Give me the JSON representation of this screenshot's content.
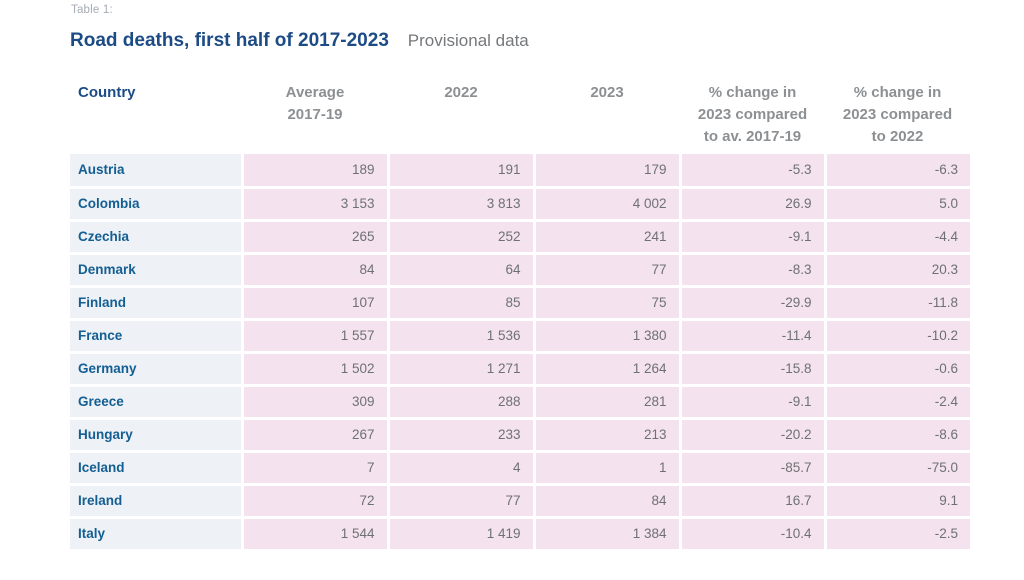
{
  "header": {
    "table_label": "Table 1:",
    "title": "Road deaths, first half of 2017-2023",
    "subtitle": "Provisional data"
  },
  "table": {
    "column_keys": [
      "country",
      "avg-2017-19",
      "2022",
      "2023",
      "pct-change-vs-avg-2017-19",
      "pct-change-vs-2022"
    ],
    "column_labels": [
      "Country",
      "Average\n2017-19",
      "2022",
      "2023",
      "% change in\n2023 compared\nto av. 2017-19",
      "% change in\n2023 compared\nto 2022"
    ],
    "rows": [
      {
        "country": "Austria",
        "values": [
          "189",
          "191",
          "179",
          "-5.3",
          "-6.3"
        ]
      },
      {
        "country": "Colombia",
        "values": [
          "3 153",
          "3 813",
          "4 002",
          "26.9",
          "5.0"
        ]
      },
      {
        "country": "Czechia",
        "values": [
          "265",
          "252",
          "241",
          "-9.1",
          "-4.4"
        ]
      },
      {
        "country": "Denmark",
        "values": [
          "84",
          "64",
          "77",
          "-8.3",
          "20.3"
        ]
      },
      {
        "country": "Finland",
        "values": [
          "107",
          "85",
          "75",
          "-29.9",
          "-11.8"
        ]
      },
      {
        "country": "France",
        "values": [
          "1 557",
          "1 536",
          "1 380",
          "-11.4",
          "-10.2"
        ]
      },
      {
        "country": "Germany",
        "values": [
          "1 502",
          "1 271",
          "1 264",
          "-15.8",
          "-0.6"
        ]
      },
      {
        "country": "Greece",
        "values": [
          "309",
          "288",
          "281",
          "-9.1",
          "-2.4"
        ]
      },
      {
        "country": "Hungary",
        "values": [
          "267",
          "233",
          "213",
          "-20.2",
          "-8.6"
        ]
      },
      {
        "country": "Iceland",
        "values": [
          "7",
          "4",
          "1",
          "-85.7",
          "-75.0"
        ]
      },
      {
        "country": "Ireland",
        "values": [
          "72",
          "77",
          "84",
          "16.7",
          "9.1"
        ]
      },
      {
        "country": "Italy",
        "values": [
          "1 544",
          "1 419",
          "1 384",
          "-10.4",
          "-2.5"
        ]
      }
    ]
  },
  "colors": {
    "title_navy": "#1c4b86",
    "country_blue": "#135e93",
    "value_gray": "#6e7173",
    "header_gray": "#8d9093",
    "label_gray": "#a6acb4",
    "pink_cell_bg": "#f4e2ef",
    "country_cell_bg": "#eef1f6",
    "gap_white": "#ffffff"
  },
  "chart_data": {
    "type": "table",
    "title": "Road deaths, first half of 2017-2023",
    "subtitle": "Provisional data",
    "table_label": "Table 1:",
    "columns": [
      "Country",
      "Average 2017-19",
      "2022",
      "2023",
      "% change in 2023 compared to av. 2017-19",
      "% change in 2023 compared to 2022"
    ],
    "rows": [
      [
        "Austria",
        189,
        191,
        179,
        -5.3,
        -6.3
      ],
      [
        "Colombia",
        3153,
        3813,
        4002,
        26.9,
        5.0
      ],
      [
        "Czechia",
        265,
        252,
        241,
        -9.1,
        -4.4
      ],
      [
        "Denmark",
        84,
        64,
        77,
        -8.3,
        20.3
      ],
      [
        "Finland",
        107,
        85,
        75,
        -29.9,
        -11.8
      ],
      [
        "France",
        1557,
        1536,
        1380,
        -11.4,
        -10.2
      ],
      [
        "Germany",
        1502,
        1271,
        1264,
        -15.8,
        -0.6
      ],
      [
        "Greece",
        309,
        288,
        281,
        -9.1,
        -2.4
      ],
      [
        "Hungary",
        267,
        233,
        213,
        -20.2,
        -8.6
      ],
      [
        "Iceland",
        7,
        4,
        1,
        -85.7,
        -75.0
      ],
      [
        "Ireland",
        72,
        77,
        84,
        16.7,
        9.1
      ],
      [
        "Italy",
        1544,
        1419,
        1384,
        -10.4,
        -2.5
      ]
    ]
  }
}
